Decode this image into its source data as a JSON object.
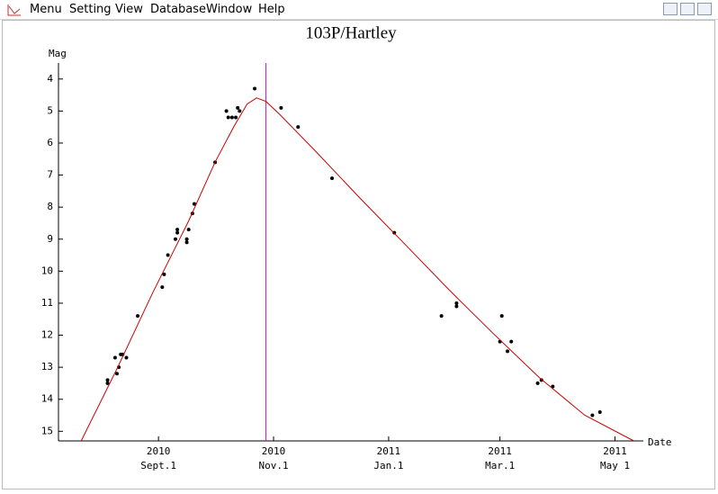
{
  "menu": [
    "Menu",
    "Setting",
    "View",
    "Database",
    "Window",
    "Help"
  ],
  "chart_data": {
    "type": "scatter",
    "title": "103P/Hartley",
    "y_label": "Mag",
    "x_label": "Date",
    "ylim": [
      15.3,
      3.5
    ],
    "yticks": [
      4,
      5,
      6,
      7,
      8,
      9,
      10,
      11,
      12,
      13,
      14,
      15
    ],
    "xlim": [
      "2010-07-10",
      "2011-05-16"
    ],
    "xticks": [
      {
        "value": "2010-09-01",
        "label": [
          "2010",
          "Sept.1"
        ]
      },
      {
        "value": "2010-11-01",
        "label": [
          "2010",
          "Nov.1"
        ]
      },
      {
        "value": "2011-01-01",
        "label": [
          "2011",
          "Jan.1"
        ]
      },
      {
        "value": "2011-03-01",
        "label": [
          "2011",
          "Mar.1"
        ]
      },
      {
        "value": "2011-05-01",
        "label": [
          "2011",
          "May 1"
        ]
      }
    ],
    "vline": {
      "x": "2010-10-28",
      "color": "#cc00cc"
    },
    "series": [
      {
        "type": "scatter",
        "color": "#000000",
        "x": [
          "2010-08-05",
          "2010-08-05",
          "2010-08-09",
          "2010-08-10",
          "2010-08-11",
          "2010-08-12",
          "2010-08-13",
          "2010-08-15",
          "2010-08-21",
          "2010-09-03",
          "2010-09-04",
          "2010-09-06",
          "2010-09-10",
          "2010-09-11",
          "2010-09-11",
          "2010-09-16",
          "2010-09-16",
          "2010-09-17",
          "2010-09-19",
          "2010-09-20",
          "2010-10-01",
          "2010-10-07",
          "2010-10-08",
          "2010-10-10",
          "2010-10-12",
          "2010-10-13",
          "2010-10-14",
          "2010-10-22",
          "2010-11-05",
          "2010-11-14",
          "2010-12-02",
          "2011-01-04",
          "2011-01-29",
          "2011-02-06",
          "2011-02-06",
          "2011-03-01",
          "2011-03-02",
          "2011-03-05",
          "2011-03-07",
          "2011-03-21",
          "2011-03-23",
          "2011-03-29",
          "2011-04-19",
          "2011-04-23"
        ],
        "values": [
          13.4,
          13.5,
          12.7,
          13.2,
          13.0,
          12.6,
          12.6,
          12.7,
          11.4,
          10.5,
          10.1,
          9.5,
          9.0,
          8.8,
          8.7,
          9.0,
          9.1,
          8.7,
          8.2,
          7.9,
          6.6,
          5.0,
          5.2,
          5.2,
          5.2,
          4.9,
          5.0,
          4.3,
          4.9,
          5.5,
          7.1,
          8.8,
          11.4,
          11.0,
          11.1,
          12.2,
          11.4,
          12.5,
          12.2,
          13.5,
          13.4,
          13.6,
          14.5,
          14.4
        ]
      },
      {
        "type": "line",
        "color": "#cc0000",
        "x": [
          "2010-07-22",
          "2010-08-10",
          "2010-08-29",
          "2010-09-17",
          "2010-10-01",
          "2010-10-11",
          "2010-10-18",
          "2010-10-23",
          "2010-10-28",
          "2010-11-04",
          "2010-11-23",
          "2010-12-17",
          "2011-01-10",
          "2011-02-02",
          "2011-02-26",
          "2011-03-22",
          "2011-04-15",
          "2011-05-11"
        ],
        "values": [
          15.3,
          13.05,
          10.67,
          8.43,
          6.6,
          5.48,
          4.78,
          4.59,
          4.7,
          5.09,
          6.24,
          7.73,
          9.18,
          10.58,
          11.98,
          13.33,
          14.5,
          15.3
        ]
      }
    ]
  }
}
